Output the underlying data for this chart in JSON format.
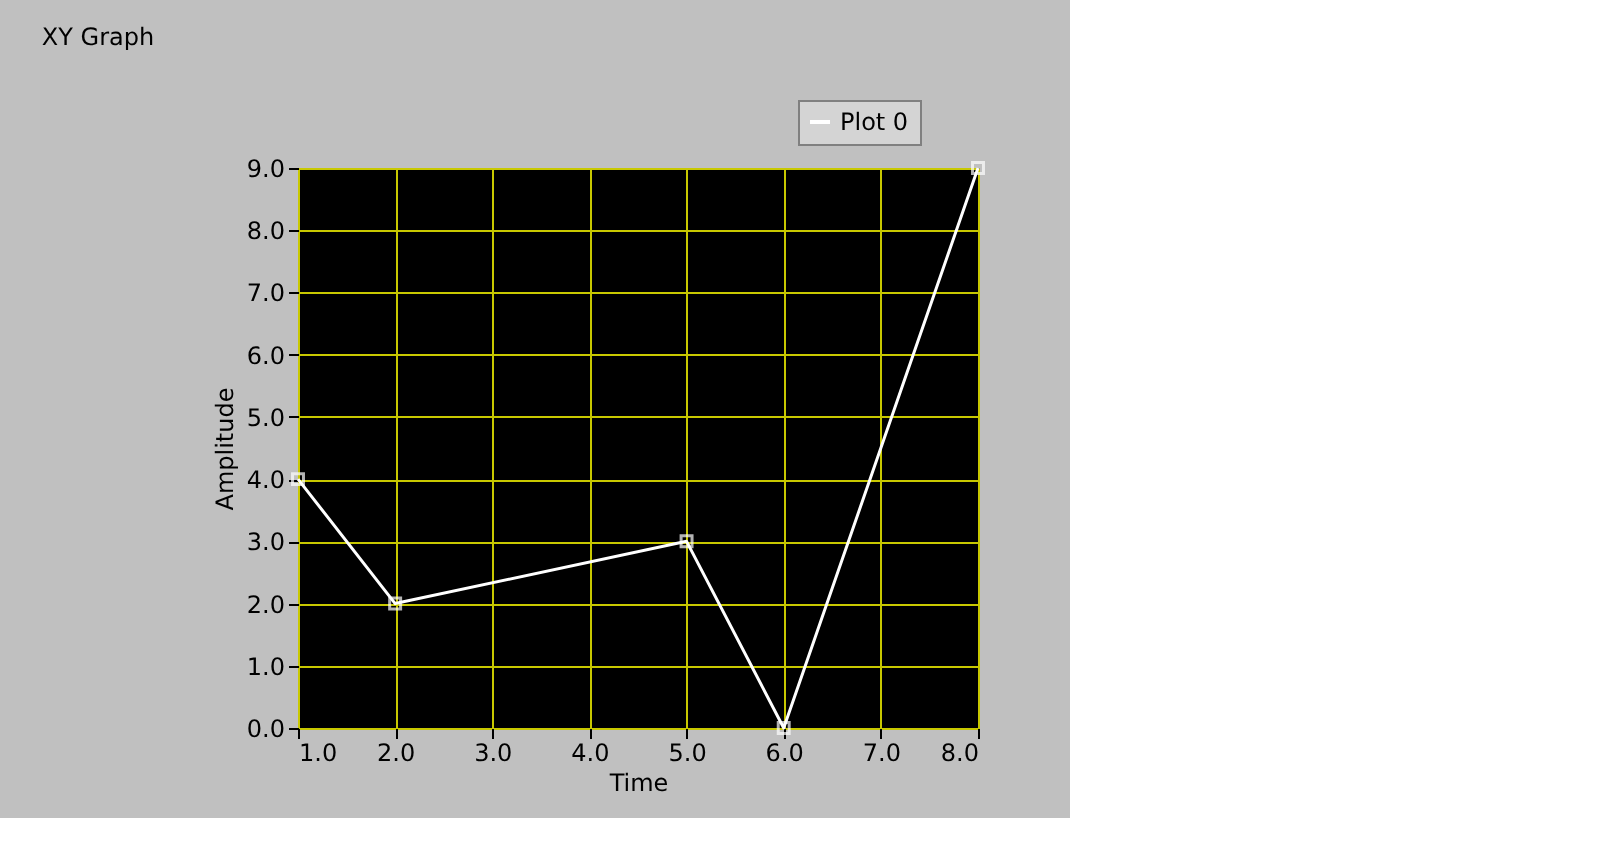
{
  "chart_data": {
    "type": "line",
    "title": "XY Graph",
    "xlabel": "Time",
    "ylabel": "Amplitude",
    "x": [
      1,
      2,
      5,
      6,
      8
    ],
    "series": [
      {
        "name": "Plot 0",
        "color": "#ffffff",
        "values": [
          4,
          2,
          3,
          0,
          9
        ]
      }
    ],
    "xlim": [
      1,
      8
    ],
    "ylim": [
      0,
      9
    ],
    "xticks": [
      {
        "value": 1,
        "label": "1.0"
      },
      {
        "value": 2,
        "label": "2.0"
      },
      {
        "value": 3,
        "label": "3.0"
      },
      {
        "value": 4,
        "label": "4.0"
      },
      {
        "value": 5,
        "label": "5.0"
      },
      {
        "value": 6,
        "label": "6.0"
      },
      {
        "value": 7,
        "label": "7.0"
      },
      {
        "value": 8,
        "label": "8.0"
      }
    ],
    "yticks": [
      {
        "value": 0,
        "label": "0.0"
      },
      {
        "value": 1,
        "label": "1.0"
      },
      {
        "value": 2,
        "label": "2.0"
      },
      {
        "value": 3,
        "label": "3.0"
      },
      {
        "value": 4,
        "label": "4.0"
      },
      {
        "value": 5,
        "label": "5.0"
      },
      {
        "value": 6,
        "label": "6.0"
      },
      {
        "value": 7,
        "label": "7.0"
      },
      {
        "value": 8,
        "label": "8.0"
      },
      {
        "value": 9,
        "label": "9.0"
      }
    ],
    "grid": true,
    "legend": "top right",
    "marker": "square",
    "line_style": "solid"
  }
}
